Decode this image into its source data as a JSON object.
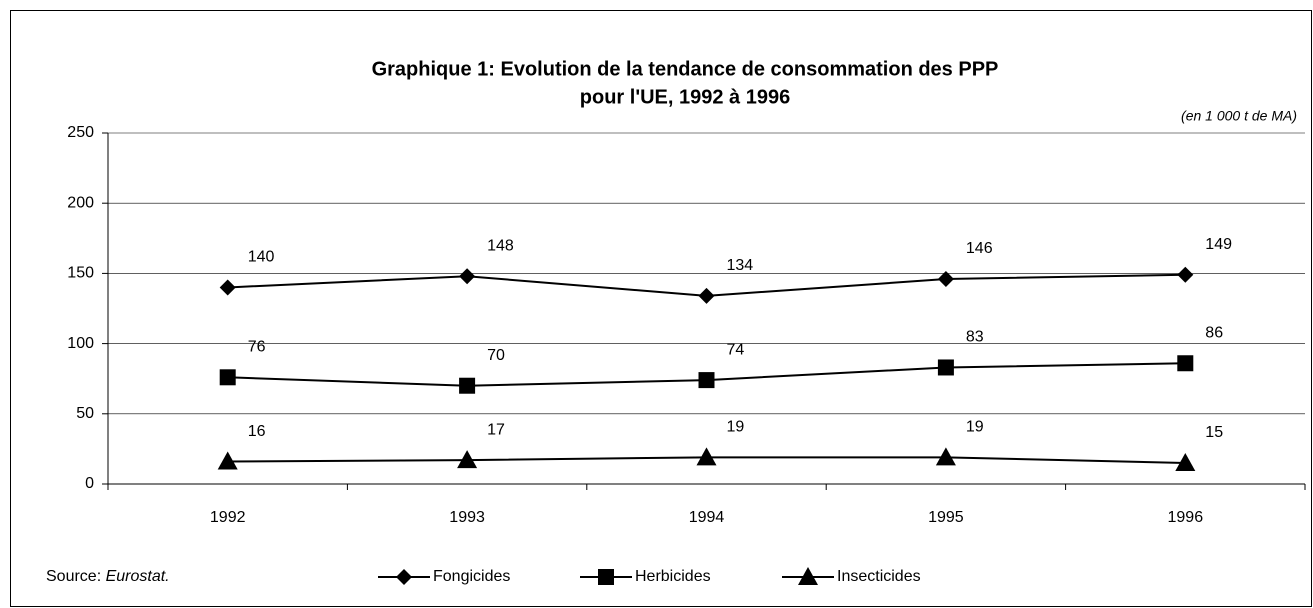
{
  "chart_data": {
    "type": "line",
    "title": [
      "Graphique 1: Evolution de la tendance de consommation des PPP",
      "pour l'UE, 1992 à 1996"
    ],
    "unit_note": "(en 1 000 t de MA)",
    "source_label": "Source:",
    "source": "Eurostat.",
    "categories": [
      "1992",
      "1993",
      "1994",
      "1995",
      "1996"
    ],
    "series": [
      {
        "name": "Fongicides",
        "color": "#000000",
        "marker": "diamond",
        "values": [
          140,
          148,
          134,
          146,
          149
        ]
      },
      {
        "name": "Herbicides",
        "color": "#000000",
        "marker": "square",
        "values": [
          76,
          70,
          74,
          83,
          86
        ]
      },
      {
        "name": "Insecticides",
        "color": "#000000",
        "marker": "triangle",
        "values": [
          16,
          17,
          19,
          19,
          15
        ]
      }
    ],
    "ylim": [
      0,
      250
    ],
    "yticks": [
      0,
      50,
      100,
      150,
      200,
      250
    ],
    "grid": true,
    "legend": "bottom"
  }
}
